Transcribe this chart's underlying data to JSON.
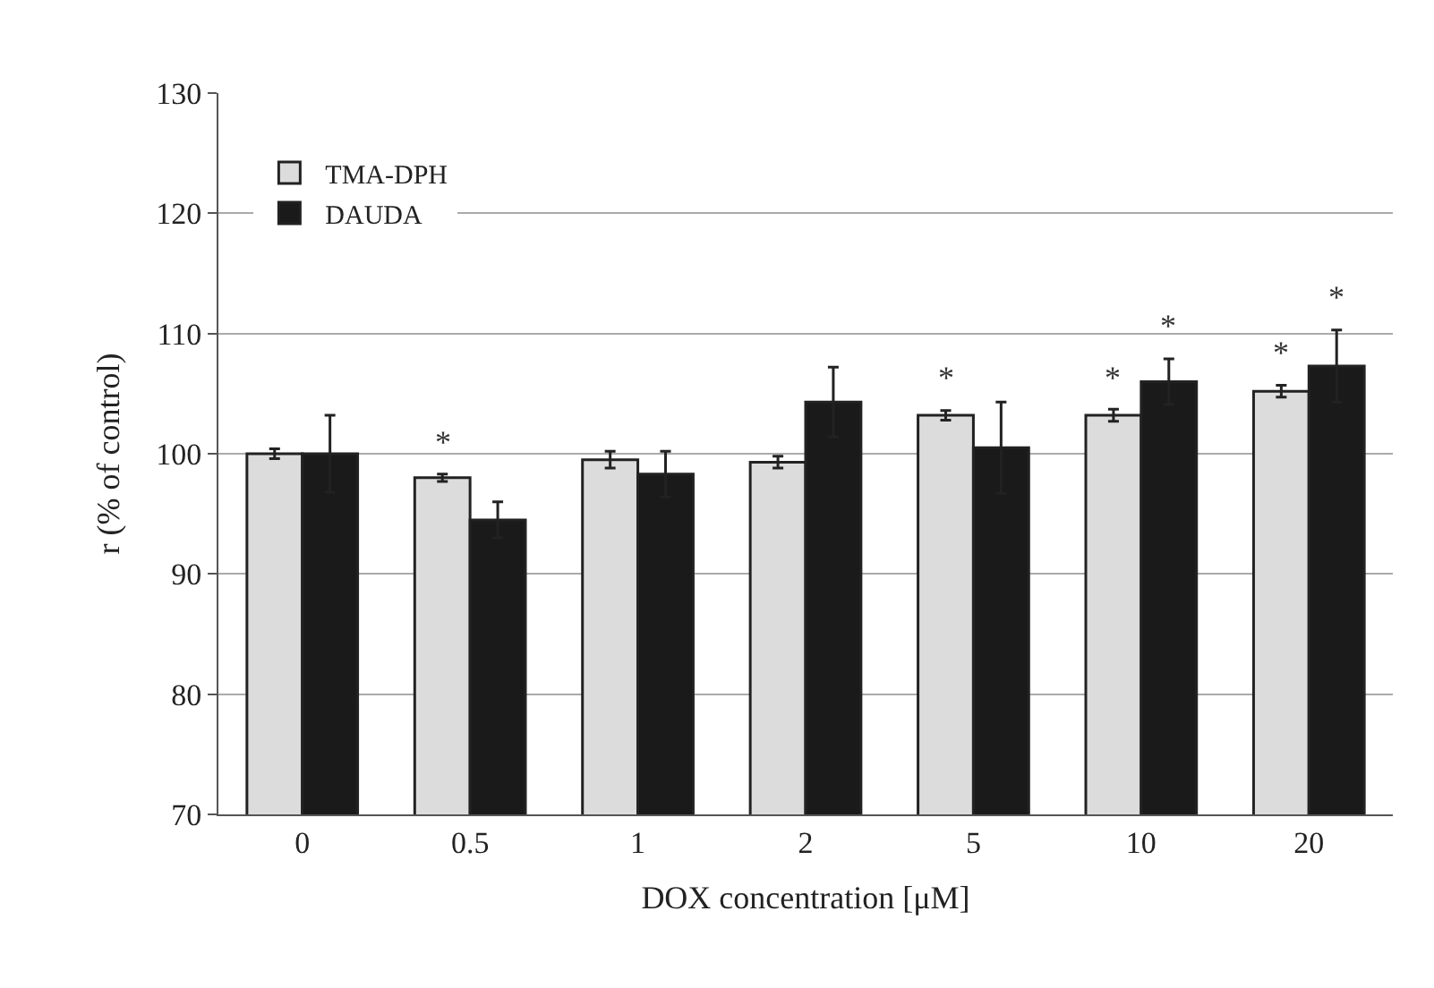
{
  "chart_data": {
    "type": "bar",
    "xlabel": "DOX concentration [μM]",
    "ylabel": "r (% of control)",
    "categories": [
      "0",
      "0.5",
      "1",
      "2",
      "5",
      "10",
      "20"
    ],
    "series": [
      {
        "name": "TMA-DPH",
        "color": "#dcdcdc",
        "values": [
          100,
          98,
          99.5,
          99.3,
          103.2,
          103.2,
          105.2
        ],
        "errors": [
          0.4,
          0.3,
          0.7,
          0.5,
          0.4,
          0.5,
          0.5
        ]
      },
      {
        "name": "DAUDA",
        "color": "#1a1a1a",
        "values": [
          100,
          94.5,
          98.3,
          104.3,
          100.5,
          106,
          107.3
        ],
        "errors": [
          3.2,
          1.5,
          1.9,
          2.9,
          3.8,
          1.9,
          3.0
        ]
      }
    ],
    "ylim": [
      70,
      130
    ],
    "yticks": [
      70,
      80,
      90,
      100,
      110,
      120,
      130
    ],
    "grid": "y",
    "legend": "top left",
    "annotations": [
      {
        "text": "*",
        "x": "0.5",
        "y": 98
      },
      {
        "text": "*",
        "x": "5",
        "y": 103.2
      },
      {
        "text": "*",
        "x": "10",
        "y": 103.2
      },
      {
        "text": "*",
        "x": "10",
        "y": 106
      },
      {
        "text": "*",
        "x": "20",
        "y": 105.2
      },
      {
        "text": "*",
        "x": "20",
        "y": 107.3
      }
    ]
  }
}
